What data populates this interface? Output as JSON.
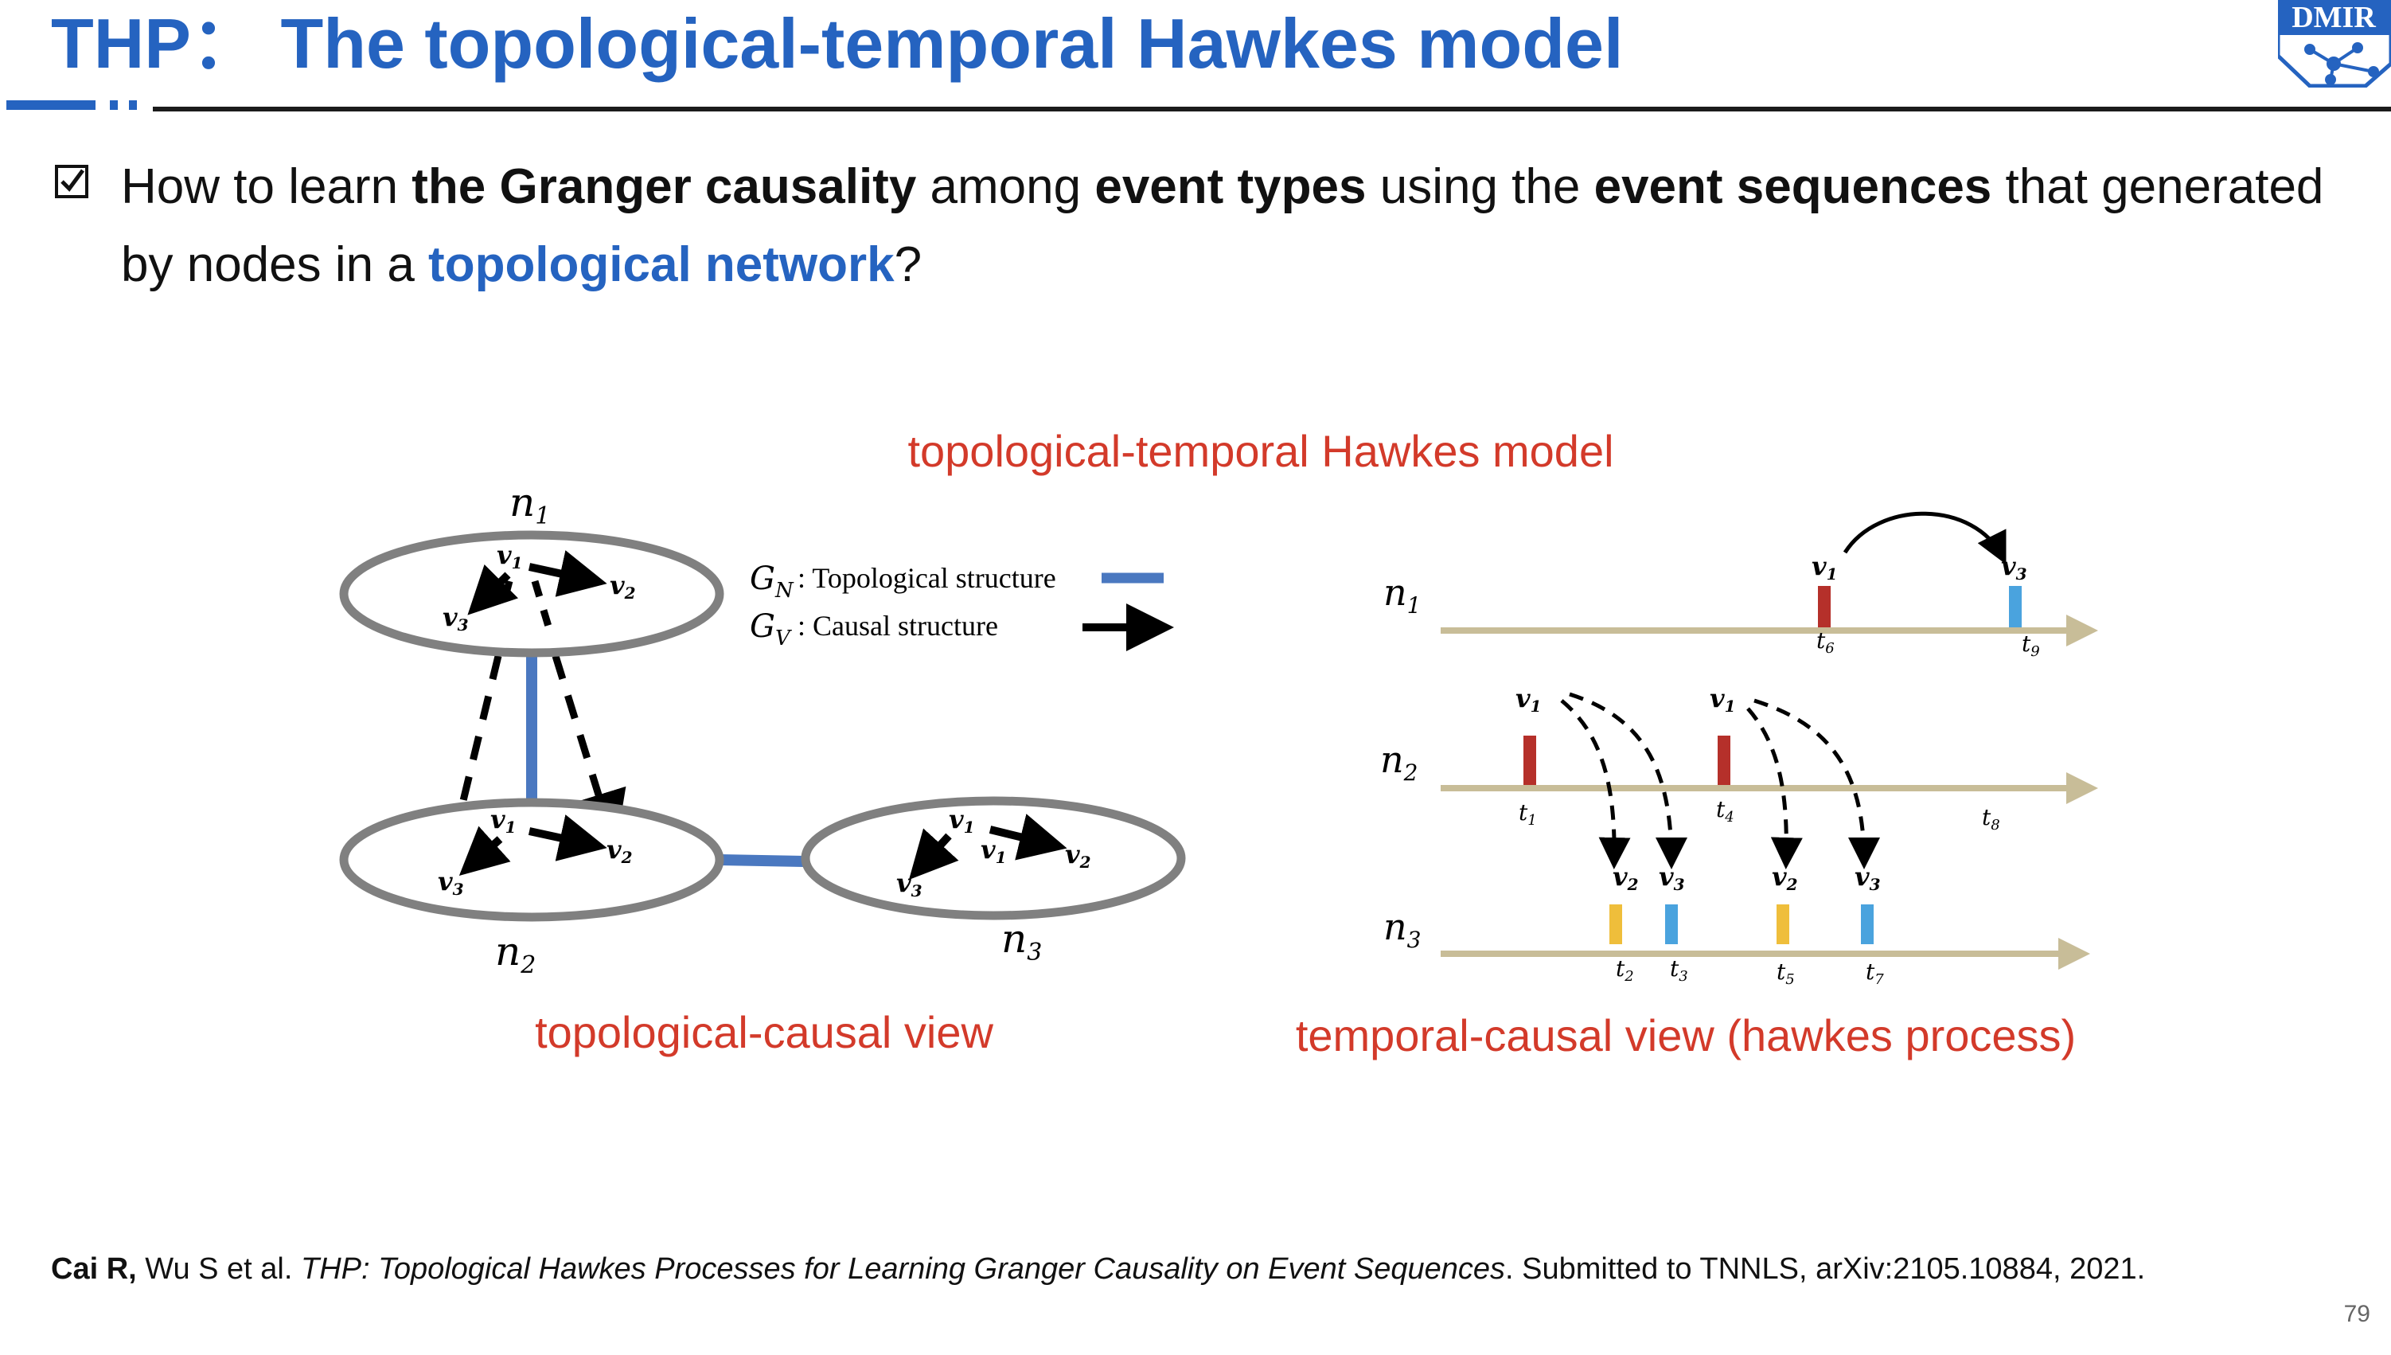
{
  "slide": {
    "title": "THP： The topological-temporal Hawkes model",
    "logo_text": "DMIR",
    "page_number": "79"
  },
  "question": {
    "p1": "How to learn ",
    "b1": "the Granger causality",
    "p2": " among ",
    "b2": "event types",
    "p3": " using the ",
    "b3": "event sequences",
    "p4": " that generated by nodes in a ",
    "hl": "topological network",
    "p5": "?"
  },
  "diagram": {
    "main_label": "topological-temporal Hawkes model",
    "left_caption": "topological-causal view",
    "right_caption": "temporal-causal view (hawkes process)",
    "legend": {
      "gn_symbol": "G",
      "gn_sub": "N",
      "gn_label": ": Topological structure",
      "gv_symbol": "G",
      "gv_sub": "V",
      "gv_label": ": Causal structure"
    },
    "nodes": {
      "n1": {
        "sym": "n",
        "sub": "1"
      },
      "n2": {
        "sym": "n",
        "sub": "2"
      },
      "n3": {
        "sym": "n",
        "sub": "3"
      }
    },
    "event_type": {
      "sym": "v",
      "sub1": "1",
      "sub2": "2",
      "sub3": "3"
    },
    "timeline": {
      "rows": [
        {
          "sym": "n",
          "sub": "1"
        },
        {
          "sym": "n",
          "sub": "2"
        },
        {
          "sym": "n",
          "sub": "3"
        }
      ],
      "time_sym": "t",
      "time_subs": [
        "1",
        "2",
        "3",
        "4",
        "5",
        "6",
        "7",
        "8",
        "9"
      ]
    },
    "colors": {
      "red_event": "#b5302a",
      "yellow_event": "#efbe3b",
      "blue_event": "#4aa3de",
      "axis": "#c8bd98",
      "topology": "#4a78c0",
      "ellipse": "#808080",
      "caption": "#d33a2a"
    }
  },
  "citation": {
    "authors_bold": "Cai R,",
    "authors_rest": " Wu S et al. ",
    "title_italic": "THP: Topological Hawkes Processes for Learning Granger Causality on Event Sequences",
    "venue": ". Submitted to TNNLS, arXiv:2105.10884, 2021."
  }
}
